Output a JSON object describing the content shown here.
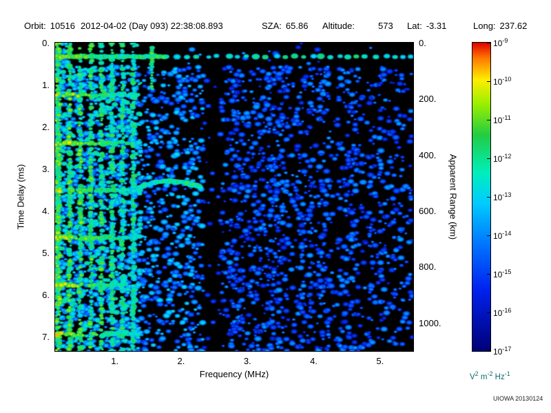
{
  "header": {
    "orbit_label": "Orbit:",
    "orbit_value": "10516",
    "datetime": "2012-04-02 (Day 093) 22:38:08.893",
    "sza_label": "SZA:",
    "sza_value": "65.86",
    "altitude_label": "Altitude:",
    "altitude_value": "573",
    "lat_label": "Lat:",
    "lat_value": "-3.31",
    "long_label": "Long:",
    "long_value": "237.62"
  },
  "chart_data": {
    "type": "heatmap",
    "xlabel": "Frequency (MHz)",
    "ylabel": "Time Delay (ms)",
    "y2label": "Apparent Range (km)",
    "xlim": [
      0.1,
      5.5
    ],
    "ylim": [
      0,
      7.35
    ],
    "y2lim": [
      0,
      1102
    ],
    "x_tick_values": [
      1,
      2,
      3,
      4,
      5
    ],
    "x_tick_labels": [
      "1.",
      "2.",
      "3.",
      "4.",
      "5."
    ],
    "y_tick_values": [
      0,
      1,
      2,
      3,
      4,
      5,
      6,
      7
    ],
    "y_tick_labels": [
      "0.",
      "1.",
      "2.",
      "3.",
      "4.",
      "5.",
      "6.",
      "7."
    ],
    "y2_tick_values": [
      0,
      200,
      400,
      600,
      800,
      1000
    ],
    "y2_tick_labels": [
      "0.",
      "200.",
      "400.",
      "600.",
      "800.",
      "1000."
    ],
    "grid": false,
    "legend_position": "right-colorbar",
    "colorbar": {
      "mantissa": "10",
      "exponents": [
        "-9",
        "-10",
        "-11",
        "-12",
        "-13",
        "-14",
        "-15",
        "-16",
        "-17"
      ],
      "scale_max": "1e-9",
      "scale_min": "1e-17",
      "gradient": [
        "#dd0000 0%",
        "#ff7700 5%",
        "#ffee00 12%",
        "#99ee00 20%",
        "#22cc44 30%",
        "#00eebb 42%",
        "#00ccff 52%",
        "#0077ff 65%",
        "#0022ee 80%",
        "#000077 100%"
      ],
      "units_parts": [
        {
          "text": "V",
          "sup": "2"
        },
        {
          "text": " m",
          "sup": "-2"
        },
        {
          "text": " Hz",
          "sup": "-1"
        }
      ]
    },
    "features": {
      "background_color": "#000000",
      "noise_floor_description": "blue speckle field, density and brightness decreasing with frequency",
      "surface_echo_delay_ms": 0.33,
      "plasma_harmonics_mhz": [
        0.16,
        0.32,
        0.48,
        0.64,
        0.8,
        0.96,
        1.12,
        1.28
      ],
      "electron_cyclotron_echo_delays_ms": [
        1.25,
        2.4,
        3.52,
        4.65,
        5.78,
        6.95
      ],
      "ionosphere_trace": {
        "freq_start_mhz": 1.36,
        "freq_end_mhz": 2.3,
        "delay_ms": 3.45
      },
      "interference_gap_mhz": [
        2.32,
        2.55
      ],
      "bright_vertical_segment_mhz": 1.56
    }
  },
  "footer": {
    "credit": "UIOWA 20130124"
  }
}
